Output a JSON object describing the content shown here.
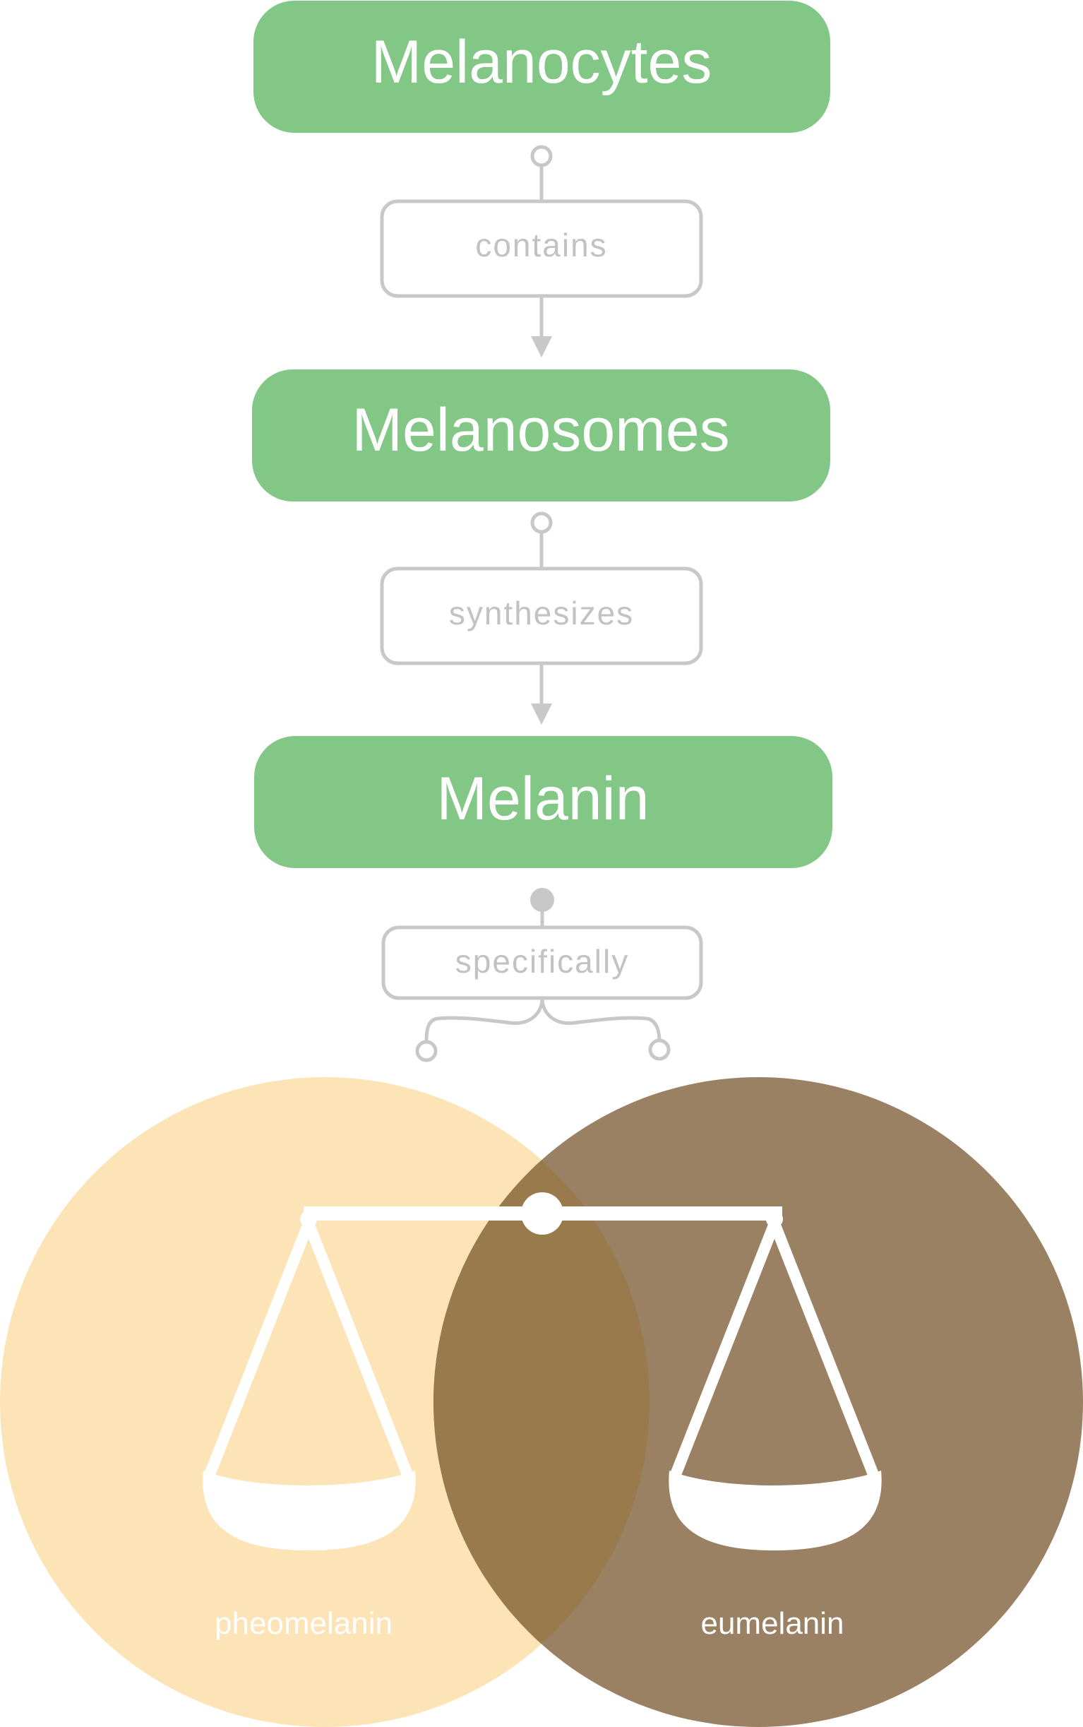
{
  "diagram": {
    "nodes": [
      {
        "id": "melanocytes",
        "label": "Melanocytes"
      },
      {
        "id": "melanosomes",
        "label": "Melanosomes"
      },
      {
        "id": "melanin",
        "label": "Melanin"
      }
    ],
    "edges": [
      {
        "from": "melanocytes",
        "to": "melanosomes",
        "label": "contains"
      },
      {
        "from": "melanosomes",
        "to": "melanin",
        "label": "synthesizes"
      },
      {
        "from": "melanin",
        "to": [
          "pheomelanin",
          "eumelanin"
        ],
        "label": "specifically"
      }
    ],
    "balance": {
      "left": {
        "label": "pheomelanin"
      },
      "right": {
        "label": "eumelanin"
      }
    },
    "colors": {
      "node_fill": "#82c785",
      "node_text": "#ffffff",
      "connector": "#c8c8c8",
      "edge_label_text": "#c2c2c2",
      "pheomelanin": "#fce4b6",
      "eumelanin": "#9a8163",
      "overlap": "#987a4d",
      "scale": "#ffffff"
    },
    "icons": [
      "balance-scale-icon"
    ]
  }
}
